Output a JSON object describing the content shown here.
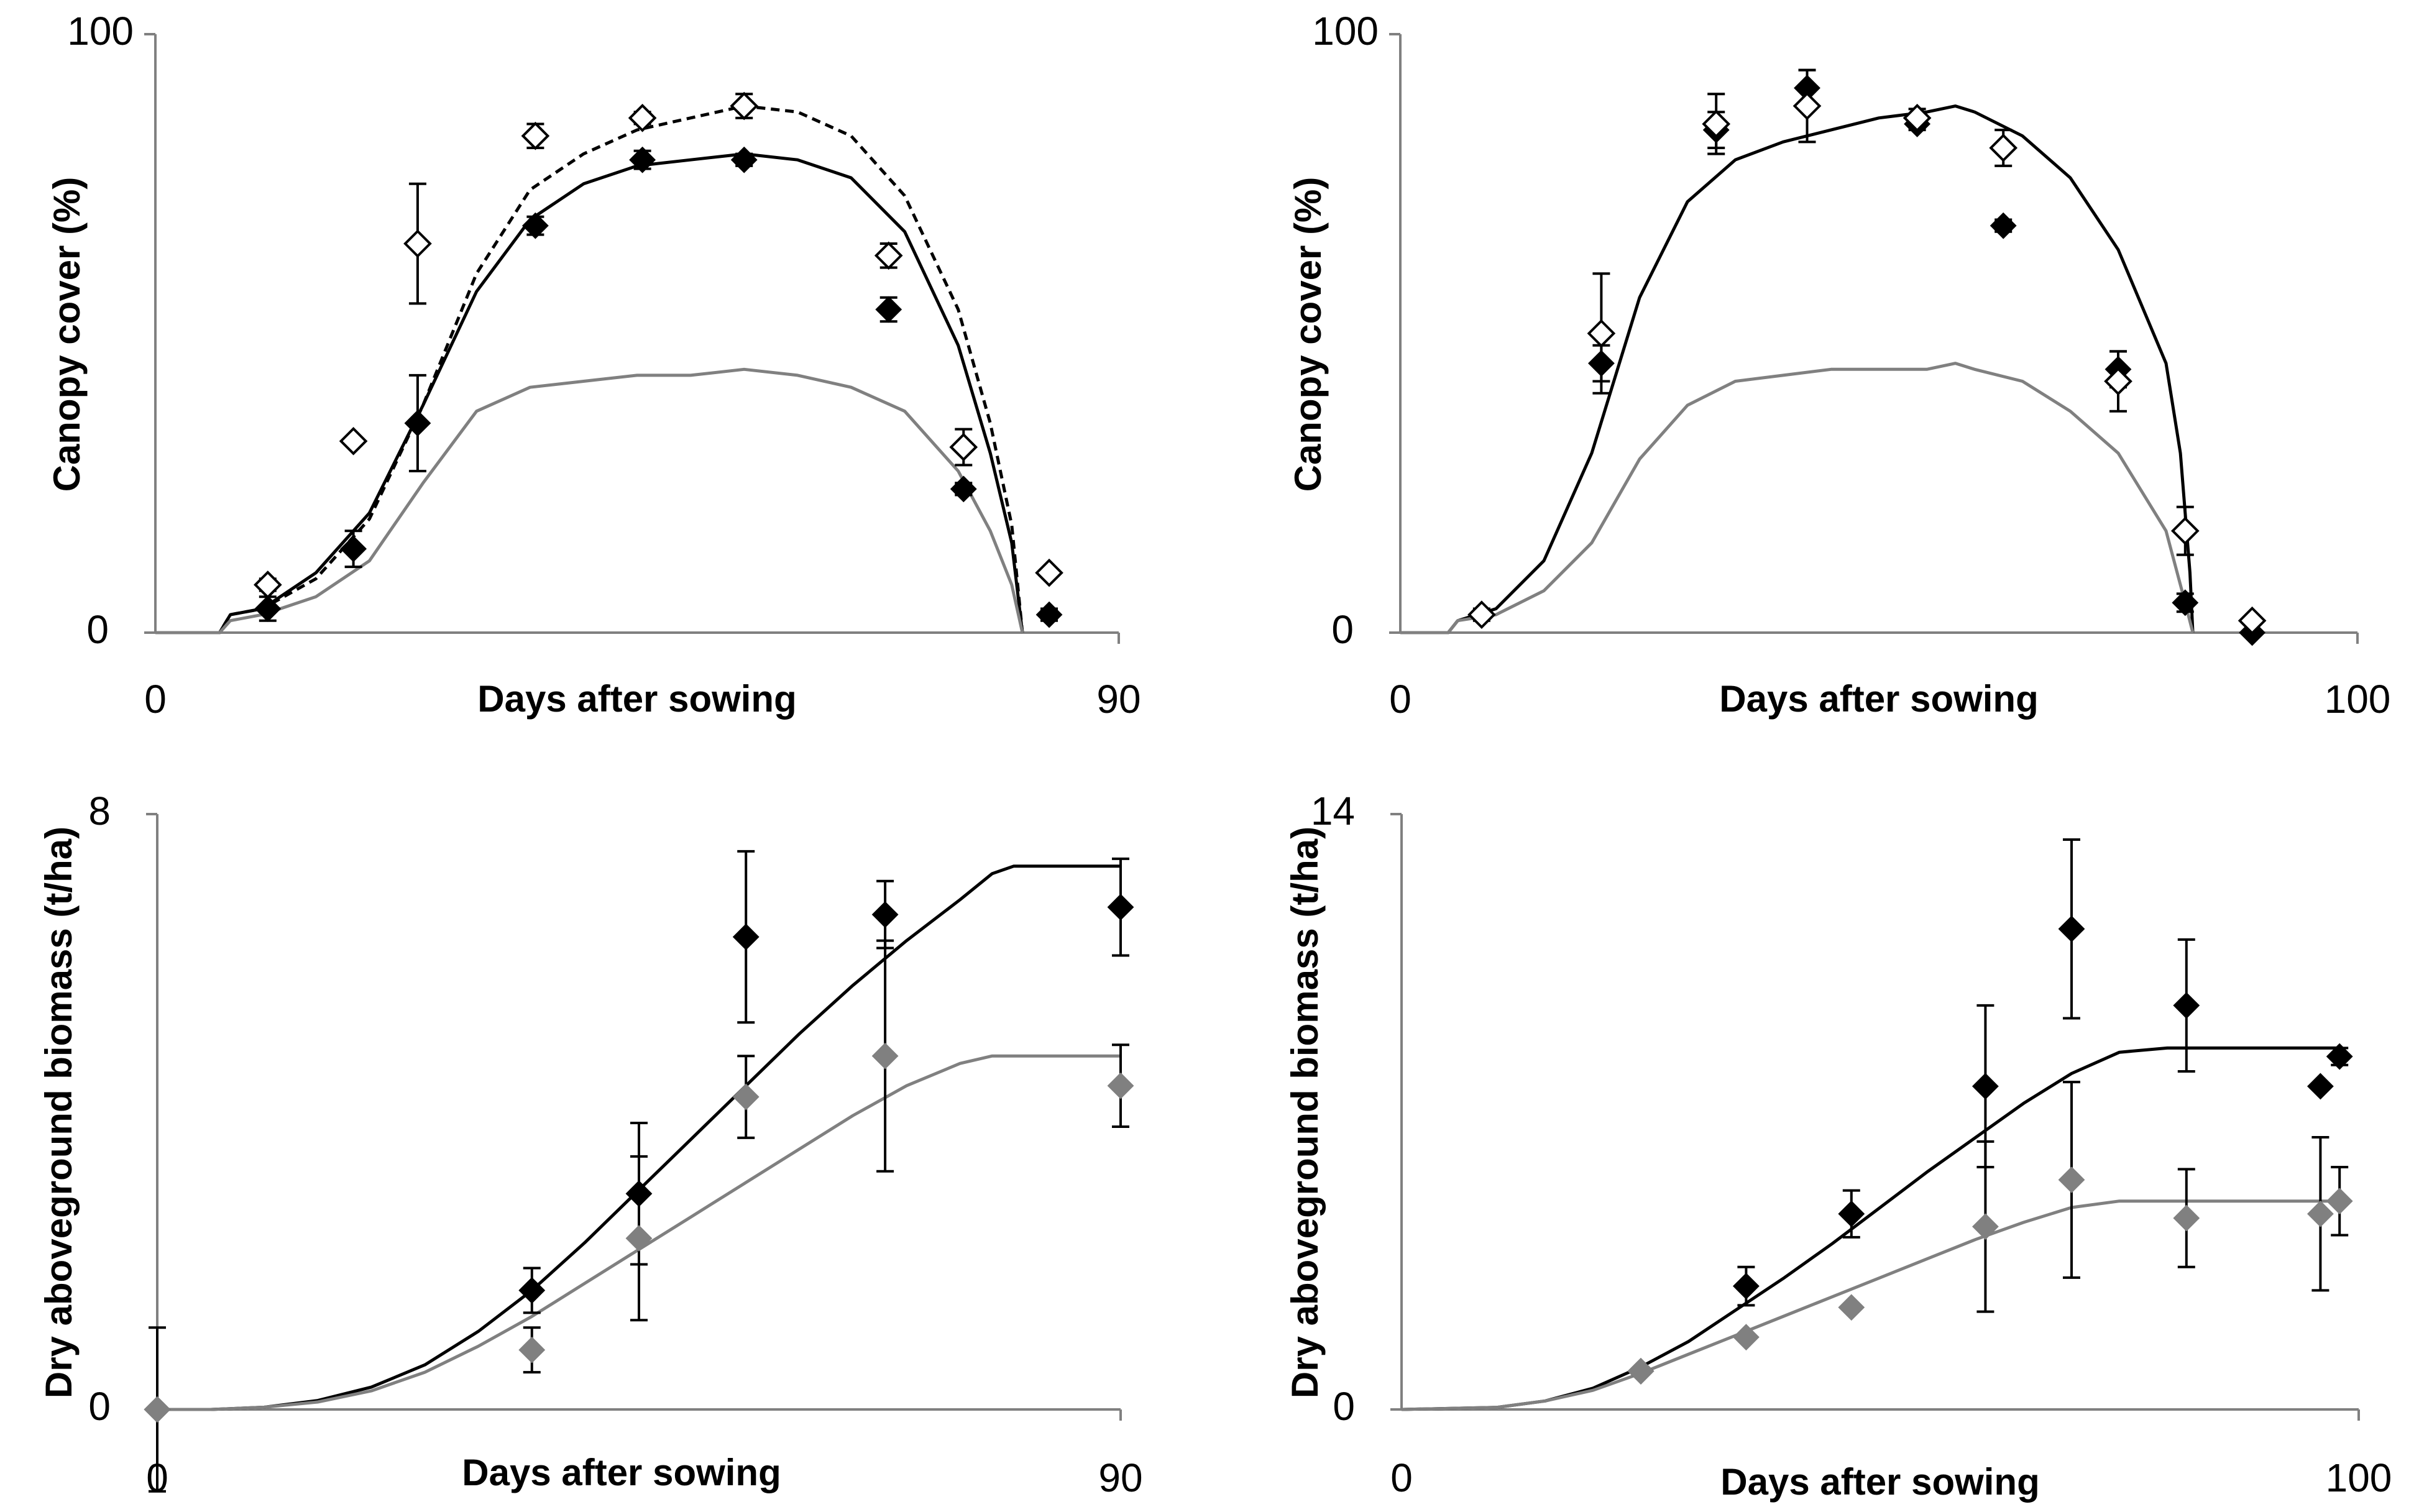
{
  "chart_data": [
    {
      "type": "line",
      "panel": "top-left",
      "xlabel": "Days after sowing",
      "ylabel": "Canopy cover (%)",
      "xlim": [
        0,
        90
      ],
      "ylim": [
        0,
        100
      ],
      "x_ticks": [
        "0",
        "90"
      ],
      "y_ticks": [
        "0",
        "100"
      ],
      "grid": false,
      "legend": null,
      "series": [
        {
          "kind": "line",
          "color": "#000000",
          "style": "solid",
          "x": [
            0,
            6,
            7,
            10,
            15,
            20,
            25,
            30,
            35,
            40,
            45,
            50,
            55,
            60,
            65,
            70,
            75,
            78,
            80,
            81
          ],
          "y": [
            0,
            0,
            3,
            4,
            10,
            20,
            38,
            57,
            69,
            75,
            78,
            79,
            80,
            79,
            76,
            67,
            48,
            30,
            15,
            0
          ]
        },
        {
          "kind": "line",
          "color": "#000000",
          "style": "dashed",
          "x": [
            0,
            6,
            7,
            10,
            15,
            20,
            25,
            30,
            35,
            40,
            45,
            50,
            55,
            60,
            65,
            70,
            75,
            78,
            80,
            81
          ],
          "y": [
            0,
            0,
            3,
            4,
            9,
            19,
            38,
            60,
            74,
            80,
            84,
            86,
            88,
            87,
            83,
            73,
            54,
            35,
            18,
            0
          ]
        },
        {
          "kind": "line",
          "color": "#808080",
          "style": "solid",
          "x": [
            0,
            6,
            7,
            10,
            15,
            20,
            25,
            30,
            35,
            40,
            45,
            50,
            55,
            60,
            65,
            70,
            75,
            78,
            80,
            81
          ],
          "y": [
            0,
            0,
            2,
            3,
            6,
            12,
            25,
            37,
            41,
            42,
            43,
            43,
            44,
            43,
            41,
            37,
            27,
            17,
            8,
            0
          ]
        },
        {
          "kind": "points",
          "marker": "diamond-filled",
          "color": "#000000",
          "x": [
            10.5,
            18.5,
            24.5,
            35.5,
            45.5,
            55,
            68.5,
            75.5,
            83.5
          ],
          "y": [
            4,
            14,
            35,
            68,
            79,
            79,
            54,
            24,
            3
          ],
          "err": [
            2,
            3,
            8,
            1.5,
            1.5,
            1,
            2,
            1,
            1
          ]
        },
        {
          "kind": "points",
          "marker": "diamond-open",
          "color": "#000000",
          "x": [
            10.5,
            18.5,
            24.5,
            35.5,
            45.5,
            55,
            68.5,
            75.5,
            83.5
          ],
          "y": [
            8,
            32,
            65,
            83,
            86,
            88,
            63,
            31,
            10
          ],
          "err": [
            1,
            0,
            10,
            2,
            1,
            2,
            2,
            3,
            0
          ]
        }
      ]
    },
    {
      "type": "line",
      "panel": "top-right",
      "xlabel": "Days after sowing",
      "ylabel": "Canopy cover (%)",
      "xlim": [
        0,
        100
      ],
      "ylim": [
        0,
        100
      ],
      "x_ticks": [
        "0",
        "100"
      ],
      "y_ticks": [
        "0",
        "100"
      ],
      "grid": false,
      "legend": null,
      "series": [
        {
          "kind": "line",
          "color": "#000000",
          "style": "solid",
          "x": [
            0,
            5,
            6,
            10,
            15,
            20,
            25,
            30,
            35,
            40,
            45,
            50,
            55,
            58,
            60,
            65,
            70,
            75,
            80,
            81.5,
            82.5,
            82.8
          ],
          "y": [
            0,
            0,
            2,
            4,
            12,
            30,
            56,
            72,
            79,
            82,
            84,
            86,
            87,
            88,
            87,
            83,
            76,
            64,
            45,
            30,
            10,
            0
          ]
        },
        {
          "kind": "line",
          "color": "#808080",
          "style": "solid",
          "x": [
            0,
            5,
            6,
            10,
            15,
            20,
            25,
            30,
            35,
            40,
            45,
            50,
            55,
            58,
            60,
            65,
            70,
            75,
            80,
            82,
            82.8
          ],
          "y": [
            0,
            0,
            2,
            3,
            7,
            15,
            29,
            38,
            42,
            43,
            44,
            44,
            44,
            45,
            44,
            42,
            37,
            30,
            17,
            5,
            0
          ]
        },
        {
          "kind": "points",
          "marker": "diamond-filled",
          "color": "#000000",
          "x": [
            8.5,
            21,
            33,
            42.5,
            54,
            63,
            75,
            82,
            89
          ],
          "y": [
            3,
            45,
            84,
            91,
            85,
            68,
            44,
            5,
            0
          ],
          "err": [
            1,
            3,
            3,
            3,
            1,
            1,
            3,
            1.5,
            0
          ]
        },
        {
          "kind": "points",
          "marker": "diamond-open",
          "color": "#000000",
          "x": [
            8.5,
            21,
            33,
            42.5,
            54,
            63,
            75,
            82,
            89
          ],
          "y": [
            3,
            50,
            85,
            88,
            86,
            81,
            42,
            17,
            2
          ],
          "err": [
            0,
            10,
            5,
            6,
            1.5,
            3,
            5,
            4,
            0
          ]
        }
      ]
    },
    {
      "type": "line",
      "panel": "bottom-left",
      "xlabel": "Days after sowing",
      "ylabel": "Dry aboveground biomass (t/ha)",
      "xlim": [
        0,
        90
      ],
      "ylim": [
        0,
        8
      ],
      "x_ticks": [
        "0",
        "90"
      ],
      "y_ticks": [
        "0",
        "8"
      ],
      "grid": false,
      "legend": null,
      "series": [
        {
          "kind": "line",
          "color": "#000000",
          "style": "solid",
          "x": [
            0,
            5,
            10,
            15,
            20,
            25,
            30,
            35,
            40,
            45,
            50,
            55,
            60,
            65,
            70,
            75,
            78,
            80,
            85,
            90
          ],
          "y": [
            0,
            0,
            0.03,
            0.12,
            0.3,
            0.6,
            1.05,
            1.6,
            2.25,
            2.95,
            3.65,
            4.35,
            5.05,
            5.7,
            6.3,
            6.85,
            7.2,
            7.3,
            7.3,
            7.3
          ]
        },
        {
          "kind": "line",
          "color": "#808080",
          "style": "solid",
          "x": [
            0,
            5,
            10,
            15,
            20,
            25,
            30,
            35,
            40,
            45,
            50,
            55,
            60,
            65,
            70,
            75,
            78,
            80,
            85,
            90
          ],
          "y": [
            0,
            0,
            0.03,
            0.1,
            0.25,
            0.5,
            0.85,
            1.25,
            1.7,
            2.15,
            2.6,
            3.05,
            3.5,
            3.95,
            4.35,
            4.65,
            4.75,
            4.75,
            4.75,
            4.75
          ]
        },
        {
          "kind": "points",
          "marker": "diamond-filled",
          "color": "#000000",
          "x": [
            0,
            35,
            45,
            55,
            68,
            90
          ],
          "y": [
            0,
            1.6,
            2.9,
            6.35,
            6.65,
            6.75
          ],
          "err": [
            1.1,
            0.3,
            0.95,
            1.15,
            0.45,
            0.65
          ]
        },
        {
          "kind": "points",
          "marker": "diamond-filled",
          "color": "#808080",
          "x": [
            0,
            35,
            45,
            55,
            68,
            90
          ],
          "y": [
            0,
            0.8,
            2.3,
            4.2,
            4.75,
            4.35
          ],
          "err": [
            0,
            0.3,
            1.1,
            0.55,
            1.55,
            0.55
          ]
        }
      ]
    },
    {
      "type": "line",
      "panel": "bottom-right",
      "xlabel": "Days after sowing",
      "ylabel": "Dry aboveground biomass (t/ha)",
      "xlim": [
        0,
        100
      ],
      "ylim": [
        0,
        14
      ],
      "x_ticks": [
        "0",
        "100"
      ],
      "y_ticks": [
        "0",
        "14"
      ],
      "grid": false,
      "legend": null,
      "series": [
        {
          "kind": "line",
          "color": "#000000",
          "style": "solid",
          "x": [
            0,
            10,
            15,
            20,
            25,
            30,
            35,
            40,
            45,
            50,
            55,
            60,
            65,
            70,
            75,
            80,
            85,
            90,
            95,
            98
          ],
          "y": [
            0,
            0.05,
            0.2,
            0.5,
            1.0,
            1.6,
            2.35,
            3.1,
            3.9,
            4.75,
            5.6,
            6.4,
            7.2,
            7.9,
            8.4,
            8.5,
            8.5,
            8.5,
            8.5,
            8.5
          ]
        },
        {
          "kind": "line",
          "color": "#808080",
          "style": "solid",
          "x": [
            0,
            10,
            15,
            20,
            25,
            30,
            35,
            40,
            45,
            50,
            55,
            60,
            65,
            70,
            75,
            80,
            85,
            90,
            95,
            98
          ],
          "y": [
            0,
            0.05,
            0.2,
            0.45,
            0.85,
            1.3,
            1.75,
            2.2,
            2.65,
            3.1,
            3.55,
            4.0,
            4.4,
            4.75,
            4.9,
            4.9,
            4.9,
            4.9,
            4.9,
            4.9
          ]
        },
        {
          "kind": "points",
          "marker": "diamond-filled",
          "color": "#000000",
          "x": [
            25,
            36,
            47,
            61,
            70,
            82,
            96,
            98
          ],
          "y": [
            0.9,
            2.9,
            4.6,
            7.6,
            11.3,
            9.5,
            7.6,
            8.3
          ],
          "err": [
            0,
            0.45,
            0.55,
            1.9,
            2.1,
            1.55,
            0,
            0.2
          ]
        },
        {
          "kind": "points",
          "marker": "diamond-filled",
          "color": "#808080",
          "x": [
            25,
            36,
            47,
            61,
            70,
            82,
            96,
            98
          ],
          "y": [
            0.9,
            1.7,
            2.4,
            4.3,
            5.4,
            4.5,
            4.6,
            4.9
          ],
          "err": [
            0,
            0,
            0,
            2.0,
            2.3,
            1.15,
            1.8,
            0.8
          ]
        }
      ]
    }
  ]
}
